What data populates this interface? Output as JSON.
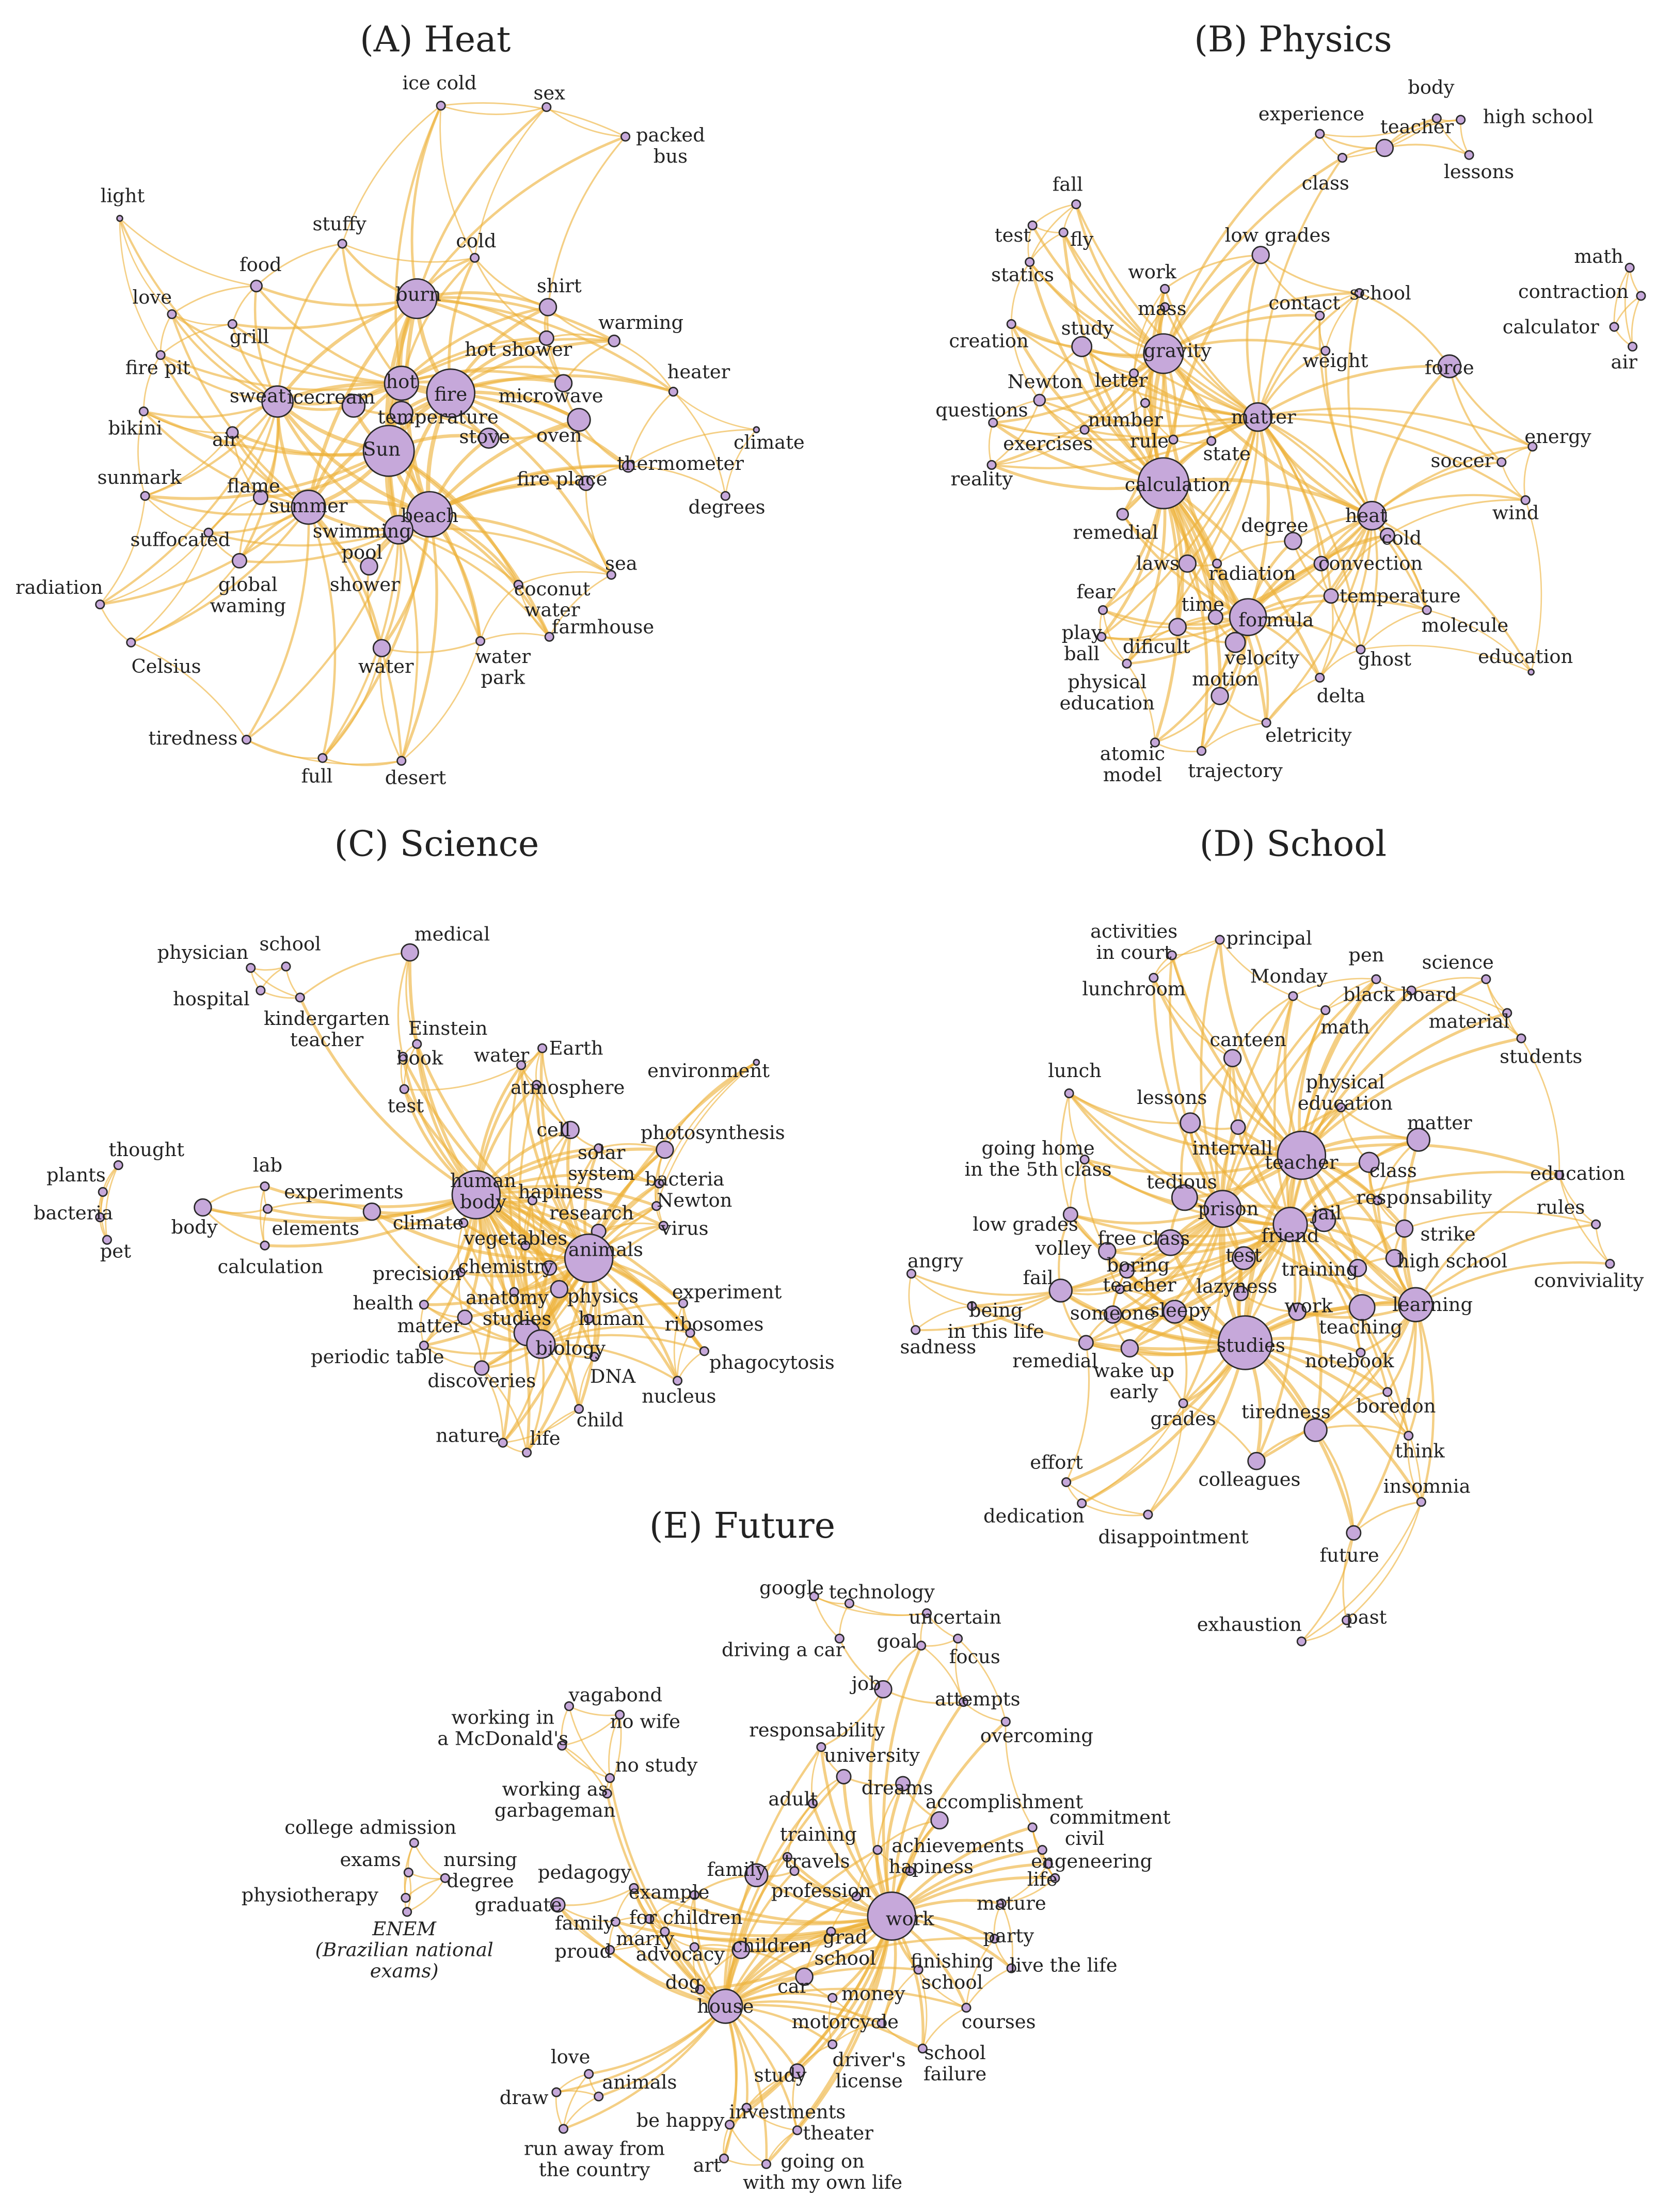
{
  "panels": [
    {
      "title": "(A) Heat",
      "nodes": [
        "ice cold",
        "sex",
        [
          "packed",
          "bus"
        ],
        "light",
        "stuffy",
        "cold",
        "food",
        "burn",
        "shirt",
        "warming",
        "love",
        "grill",
        "fire pit",
        "hot shower",
        "heater",
        "hot",
        "fire",
        "sweat",
        "icecream",
        "microwave",
        "bikini",
        "temperature",
        "oven",
        "climate",
        "air",
        "Sun",
        "stove",
        "thermometer",
        "sunmark",
        "flame",
        "fire place",
        "degrees",
        "summer",
        "beach",
        "suffocated",
        [
          "swimming",
          "pool"
        ],
        "sea",
        "radiation",
        [
          "global",
          "waming"
        ],
        "shower",
        [
          "coconut",
          "water"
        ],
        "farmhouse",
        "Celsius",
        "water",
        [
          "water",
          "park"
        ],
        "tiredness",
        "full",
        "desert"
      ]
    },
    {
      "title": "(B) Physics",
      "nodes": [
        "body",
        "experience",
        "teacher",
        "high school",
        "class",
        "lessons",
        "fall",
        "test",
        "fly",
        "low grades",
        "statics",
        "work",
        "math",
        "school",
        "mass",
        "contact",
        "contraction",
        "creation",
        "study",
        "gravity",
        "calculator",
        "weight",
        "force",
        "air",
        "Newton",
        "letter",
        "questions",
        "number",
        "matter",
        "energy",
        "exercises",
        "rule",
        "state",
        "soccer",
        "reality",
        "calculation",
        "wind",
        "heat",
        "remedial",
        "degree",
        "cold",
        "laws",
        "radiation",
        "convection",
        "fear",
        "temperature",
        "molecule",
        "time",
        "formula",
        [
          "play",
          "ball"
        ],
        "dificult",
        "velocity",
        "ghost",
        "education",
        [
          "physical",
          "education"
        ],
        "motion",
        "delta",
        "eletricity",
        [
          "atomic",
          "model"
        ],
        "trajectory"
      ]
    },
    {
      "title": "(C) Science",
      "nodes": [
        "medical",
        "physician",
        "school",
        "hospital",
        [
          "kindergarten",
          "teacher"
        ],
        "Einstein",
        "book",
        "water",
        "Earth",
        "environment",
        "atmosphere",
        "test",
        "cell",
        "photosynthesis",
        "thought",
        "lab",
        [
          "solar",
          "system"
        ],
        "plants",
        "experiments",
        [
          "human",
          "body"
        ],
        "bacteria",
        "hapiness",
        "Newton",
        "body",
        "bacteria",
        "climate",
        "elements",
        "research",
        "virus",
        "pet",
        "vegetables",
        "animals",
        "calculation",
        "chemistry",
        "precision",
        "physics",
        "experiment",
        "anatomy",
        "health",
        "studies",
        "human",
        "ribosomes",
        "matter",
        "biology",
        "DNA",
        "phagocytosis",
        "periodic table",
        "discoveries",
        "nucleus",
        "child",
        "nature",
        "life"
      ]
    },
    {
      "title": "(D) School",
      "nodes": [
        [
          "activities",
          "in court"
        ],
        "principal",
        "pen",
        "science",
        "Monday",
        "lunchroom",
        "black board",
        "material",
        "math",
        "canteen",
        "students",
        "lunch",
        [
          "physical",
          "education"
        ],
        "lessons",
        "matter",
        "intervall",
        "teacher",
        [
          "going home",
          "in the 5th class"
        ],
        "education",
        "class",
        "tedious",
        "responsability",
        "rules",
        "low grades",
        "prison",
        "jail",
        "friend",
        "free class",
        "strike",
        "angry",
        "volley",
        "test",
        "high school",
        "conviviality",
        "fail",
        "boring",
        "teacher",
        "training",
        "lazyness",
        "learning",
        [
          "being",
          "in this life"
        ],
        "someone",
        "sleepy",
        "work",
        "sadness",
        "teaching",
        "studies",
        "remedial",
        "notebook",
        [
          "wake up",
          "early"
        ],
        "boredon",
        "grades",
        "think",
        "tiredness",
        "effort",
        "colleagues",
        "insomnia",
        "dedication",
        "disappointment",
        "future",
        "exhaustion",
        "past"
      ]
    },
    {
      "title": "(E) Future",
      "nodes": [
        "google",
        "technology",
        "uncertain",
        "driving a car",
        "goal",
        "focus",
        "vagabond",
        [
          "working in",
          "a McDonald's"
        ],
        "no wife",
        "job",
        "attempts",
        "no study",
        "responsability",
        "overcoming",
        [
          "working as",
          "garbageman"
        ],
        "university",
        "dreams",
        "adult",
        "accomplishment",
        "commitment",
        "college admission",
        "training",
        "civil",
        "exams",
        [
          "nursing",
          "degree"
        ],
        "achievements",
        "engeneering",
        "family",
        "travels",
        "pedagogy",
        "hapiness",
        "life",
        "physiotherapy",
        "example",
        "profession",
        "graduate",
        "work",
        "mature",
        "for children",
        "family",
        [
          "ENEM",
          "(Brazilian national",
          "exams)"
        ],
        "marry",
        [
          "grad",
          "school"
        ],
        "party",
        "children",
        "advocacy",
        "proud",
        [
          "finishing",
          "school"
        ],
        "live the life",
        "dog",
        "car",
        "money",
        "house",
        "courses",
        "motorcycle",
        [
          "school",
          "failure"
        ],
        [
          "driver's",
          "license"
        ],
        "love",
        "study",
        "animals",
        "draw",
        "be happy",
        "investments",
        "theater",
        [
          "run away from",
          "the country"
        ],
        "art",
        [
          "going on",
          "with my own life"
        ]
      ]
    }
  ]
}
